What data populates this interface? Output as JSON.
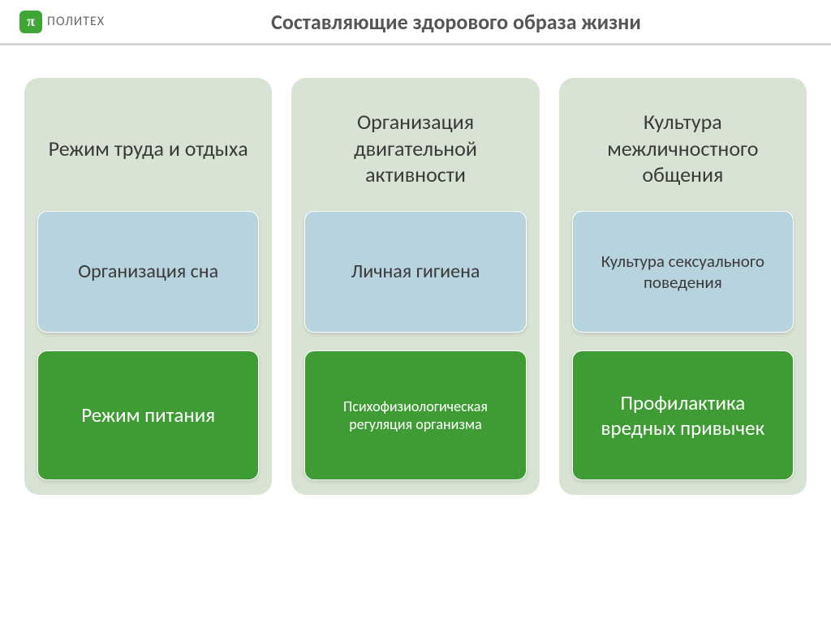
{
  "logo": {
    "symbol": "π",
    "text": "ПОЛИТЕХ"
  },
  "title": "Составляющие здорового образа жизни",
  "columns": [
    {
      "heading": "Режим труда и отдыха",
      "blue": "Организация сна",
      "green": "Режим питания",
      "blue_small": false,
      "green_small": false
    },
    {
      "heading": "Организация двигательной активности",
      "blue": "Личная гигиена",
      "green": "Психофизиологическая регуляция организма",
      "blue_small": false,
      "green_small": true
    },
    {
      "heading": "Культура межличностного общения",
      "blue": "Культура сексуального поведения",
      "green": "Профилактика вредных привычек",
      "blue_small": true,
      "green_small": false
    }
  ],
  "colors": {
    "column_bg": "#d9e3d4",
    "blue_card": "#b7d4de",
    "green_card": "#3f9c35",
    "text_dark": "#3a3a3a",
    "text_light": "#ffffff",
    "logo_green": "#3fa535",
    "header_border": "#d5d5d5"
  }
}
